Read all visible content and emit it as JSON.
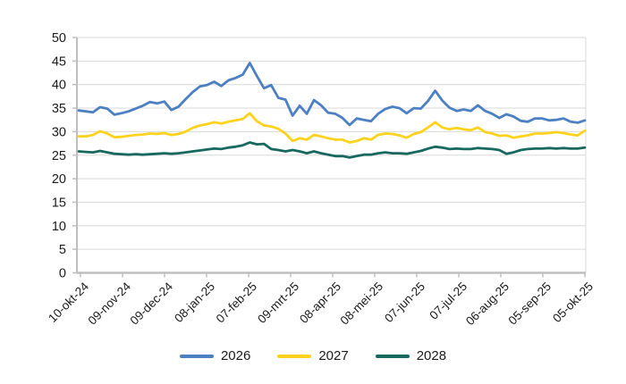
{
  "chart_data": {
    "type": "line",
    "grid": "horizontal",
    "legend_position": "bottom",
    "x_axis": {
      "tick_labels": [
        "10-okt-24",
        "09-nov-24",
        "09-dec-24",
        "08-jan-25",
        "07-feb-25",
        "09-mrt-25",
        "08-apr-25",
        "08-mei-25",
        "07-jun-25",
        "07-jul-25",
        "06-aug-25",
        "05-sep-25",
        "05-okt-25"
      ]
    },
    "y_axis": {
      "min": 0,
      "max": 50,
      "step": 5,
      "ticks": [
        0,
        5,
        10,
        15,
        20,
        25,
        30,
        35,
        40,
        45,
        50
      ]
    },
    "series": [
      {
        "name": "2026",
        "color": "#4C80C2",
        "values": [
          34.5,
          34.3,
          34.1,
          35.2,
          34.9,
          33.6,
          33.9,
          34.3,
          34.9,
          35.5,
          36.3,
          36.0,
          36.4,
          34.6,
          35.3,
          36.9,
          38.4,
          39.6,
          39.9,
          40.6,
          39.7,
          40.9,
          41.4,
          42.1,
          44.6,
          41.8,
          39.2,
          39.9,
          37.2,
          36.8,
          33.4,
          35.5,
          33.8,
          36.7,
          35.6,
          34.0,
          33.8,
          32.9,
          31.4,
          32.8,
          32.5,
          32.2,
          33.8,
          34.8,
          35.3,
          35.0,
          33.9,
          35.0,
          34.9,
          36.5,
          38.7,
          36.6,
          35.1,
          34.4,
          34.7,
          34.4,
          35.6,
          34.4,
          33.8,
          32.9,
          33.7,
          33.2,
          32.3,
          32.1,
          32.8,
          32.8,
          32.4,
          32.5,
          32.8,
          32.1,
          31.9,
          32.4
        ]
      },
      {
        "name": "2027",
        "color": "#FFD21E",
        "values": [
          29.0,
          29.0,
          29.3,
          30.1,
          29.6,
          28.8,
          28.9,
          29.1,
          29.3,
          29.4,
          29.6,
          29.5,
          29.7,
          29.3,
          29.5,
          30.0,
          30.8,
          31.3,
          31.6,
          32.0,
          31.7,
          32.1,
          32.4,
          32.7,
          33.9,
          32.2,
          31.3,
          31.1,
          30.6,
          29.6,
          28.0,
          28.6,
          28.3,
          29.3,
          29.0,
          28.6,
          28.3,
          28.3,
          27.7,
          28.0,
          28.6,
          28.3,
          29.3,
          29.6,
          29.5,
          29.2,
          28.7,
          29.5,
          29.9,
          30.9,
          32.0,
          30.9,
          30.5,
          30.8,
          30.5,
          30.3,
          30.9,
          29.9,
          29.6,
          29.1,
          29.2,
          28.7,
          29.0,
          29.2,
          29.6,
          29.6,
          29.7,
          29.9,
          29.7,
          29.4,
          29.2,
          30.2
        ]
      },
      {
        "name": "2028",
        "color": "#17685E",
        "values": [
          25.8,
          25.7,
          25.6,
          25.9,
          25.6,
          25.3,
          25.2,
          25.1,
          25.2,
          25.1,
          25.2,
          25.3,
          25.4,
          25.3,
          25.4,
          25.6,
          25.8,
          26.0,
          26.2,
          26.4,
          26.3,
          26.6,
          26.8,
          27.1,
          27.7,
          27.3,
          27.4,
          26.3,
          26.1,
          25.8,
          26.1,
          25.8,
          25.4,
          25.8,
          25.4,
          25.1,
          24.8,
          24.8,
          24.5,
          24.8,
          25.1,
          25.1,
          25.4,
          25.6,
          25.4,
          25.4,
          25.3,
          25.6,
          25.9,
          26.4,
          26.8,
          26.6,
          26.3,
          26.4,
          26.3,
          26.3,
          26.5,
          26.4,
          26.3,
          26.1,
          25.3,
          25.6,
          26.1,
          26.3,
          26.4,
          26.4,
          26.5,
          26.4,
          26.5,
          26.4,
          26.4,
          26.6
        ]
      }
    ],
    "colors": {
      "gridline": "#d9d9d9",
      "axis": "#bfbfbf",
      "label": "#1a1a1a"
    }
  }
}
